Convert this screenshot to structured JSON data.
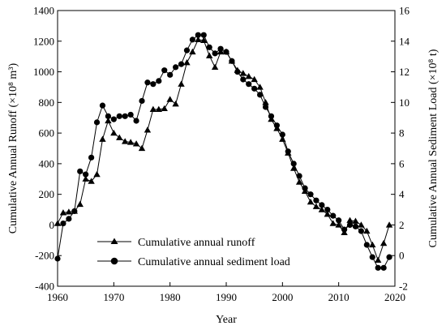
{
  "chart_data": {
    "type": "line",
    "xlabel": "Year",
    "ylabel_left": "Cumulative Annual Runoff (×10⁸ m³)",
    "ylabel_right": "Cumulative Annual Sediment Load (×10⁸ t)",
    "xlim": [
      1960,
      2020
    ],
    "ylim_left": [
      -400,
      1400
    ],
    "ylim_right": [
      -2,
      16
    ],
    "x_ticks": [
      1960,
      1970,
      1980,
      1990,
      2000,
      2010,
      2020
    ],
    "y_ticks_left": [
      -400,
      -200,
      0,
      200,
      400,
      600,
      800,
      1000,
      1200,
      1400
    ],
    "y_ticks_right": [
      -2,
      0,
      2,
      4,
      6,
      8,
      10,
      12,
      14,
      16
    ],
    "grid": false,
    "legend_position": "bottom-left",
    "x": [
      1960,
      1961,
      1962,
      1963,
      1964,
      1965,
      1966,
      1967,
      1968,
      1969,
      1970,
      1971,
      1972,
      1973,
      1974,
      1975,
      1976,
      1977,
      1978,
      1979,
      1980,
      1981,
      1982,
      1983,
      1984,
      1985,
      1986,
      1987,
      1988,
      1989,
      1990,
      1991,
      1992,
      1993,
      1994,
      1995,
      1996,
      1997,
      1998,
      1999,
      2000,
      2001,
      2002,
      2003,
      2004,
      2005,
      2006,
      2007,
      2008,
      2009,
      2010,
      2011,
      2012,
      2013,
      2014,
      2015,
      2016,
      2017,
      2018,
      2019
    ],
    "series": [
      {
        "name": "Cumulative annual runoff",
        "axis": "left",
        "marker": "triangle",
        "values": [
          10,
          80,
          85,
          90,
          135,
          300,
          285,
          330,
          560,
          680,
          600,
          570,
          545,
          540,
          530,
          500,
          620,
          755,
          755,
          760,
          820,
          790,
          920,
          1060,
          1130,
          1210,
          1205,
          1105,
          1030,
          1130,
          1130,
          1070,
          1010,
          990,
          970,
          950,
          900,
          800,
          690,
          630,
          560,
          470,
          370,
          280,
          220,
          150,
          120,
          100,
          70,
          10,
          0,
          -50,
          30,
          25,
          0,
          -40,
          -130,
          -230,
          -120,
          0
        ]
      },
      {
        "name": "Cumulative annual sediment load",
        "axis": "right",
        "marker": "circle",
        "values": [
          -0.2,
          2.1,
          2.4,
          2.9,
          5.5,
          5.3,
          6.4,
          8.7,
          9.8,
          9.1,
          8.9,
          9.1,
          9.1,
          9.2,
          8.8,
          10.1,
          11.3,
          11.2,
          11.4,
          12.1,
          11.8,
          12.3,
          12.5,
          13.4,
          14.1,
          14.4,
          14.4,
          13.6,
          13.2,
          13.5,
          13.3,
          12.7,
          12.0,
          11.5,
          11.2,
          10.9,
          10.5,
          9.7,
          9.1,
          8.5,
          7.9,
          6.8,
          6.0,
          5.2,
          4.4,
          4.0,
          3.6,
          3.3,
          3.0,
          2.6,
          2.3,
          1.7,
          2.0,
          1.9,
          1.6,
          0.7,
          -0.1,
          -0.8,
          -0.8,
          -0.1
        ]
      }
    ]
  }
}
